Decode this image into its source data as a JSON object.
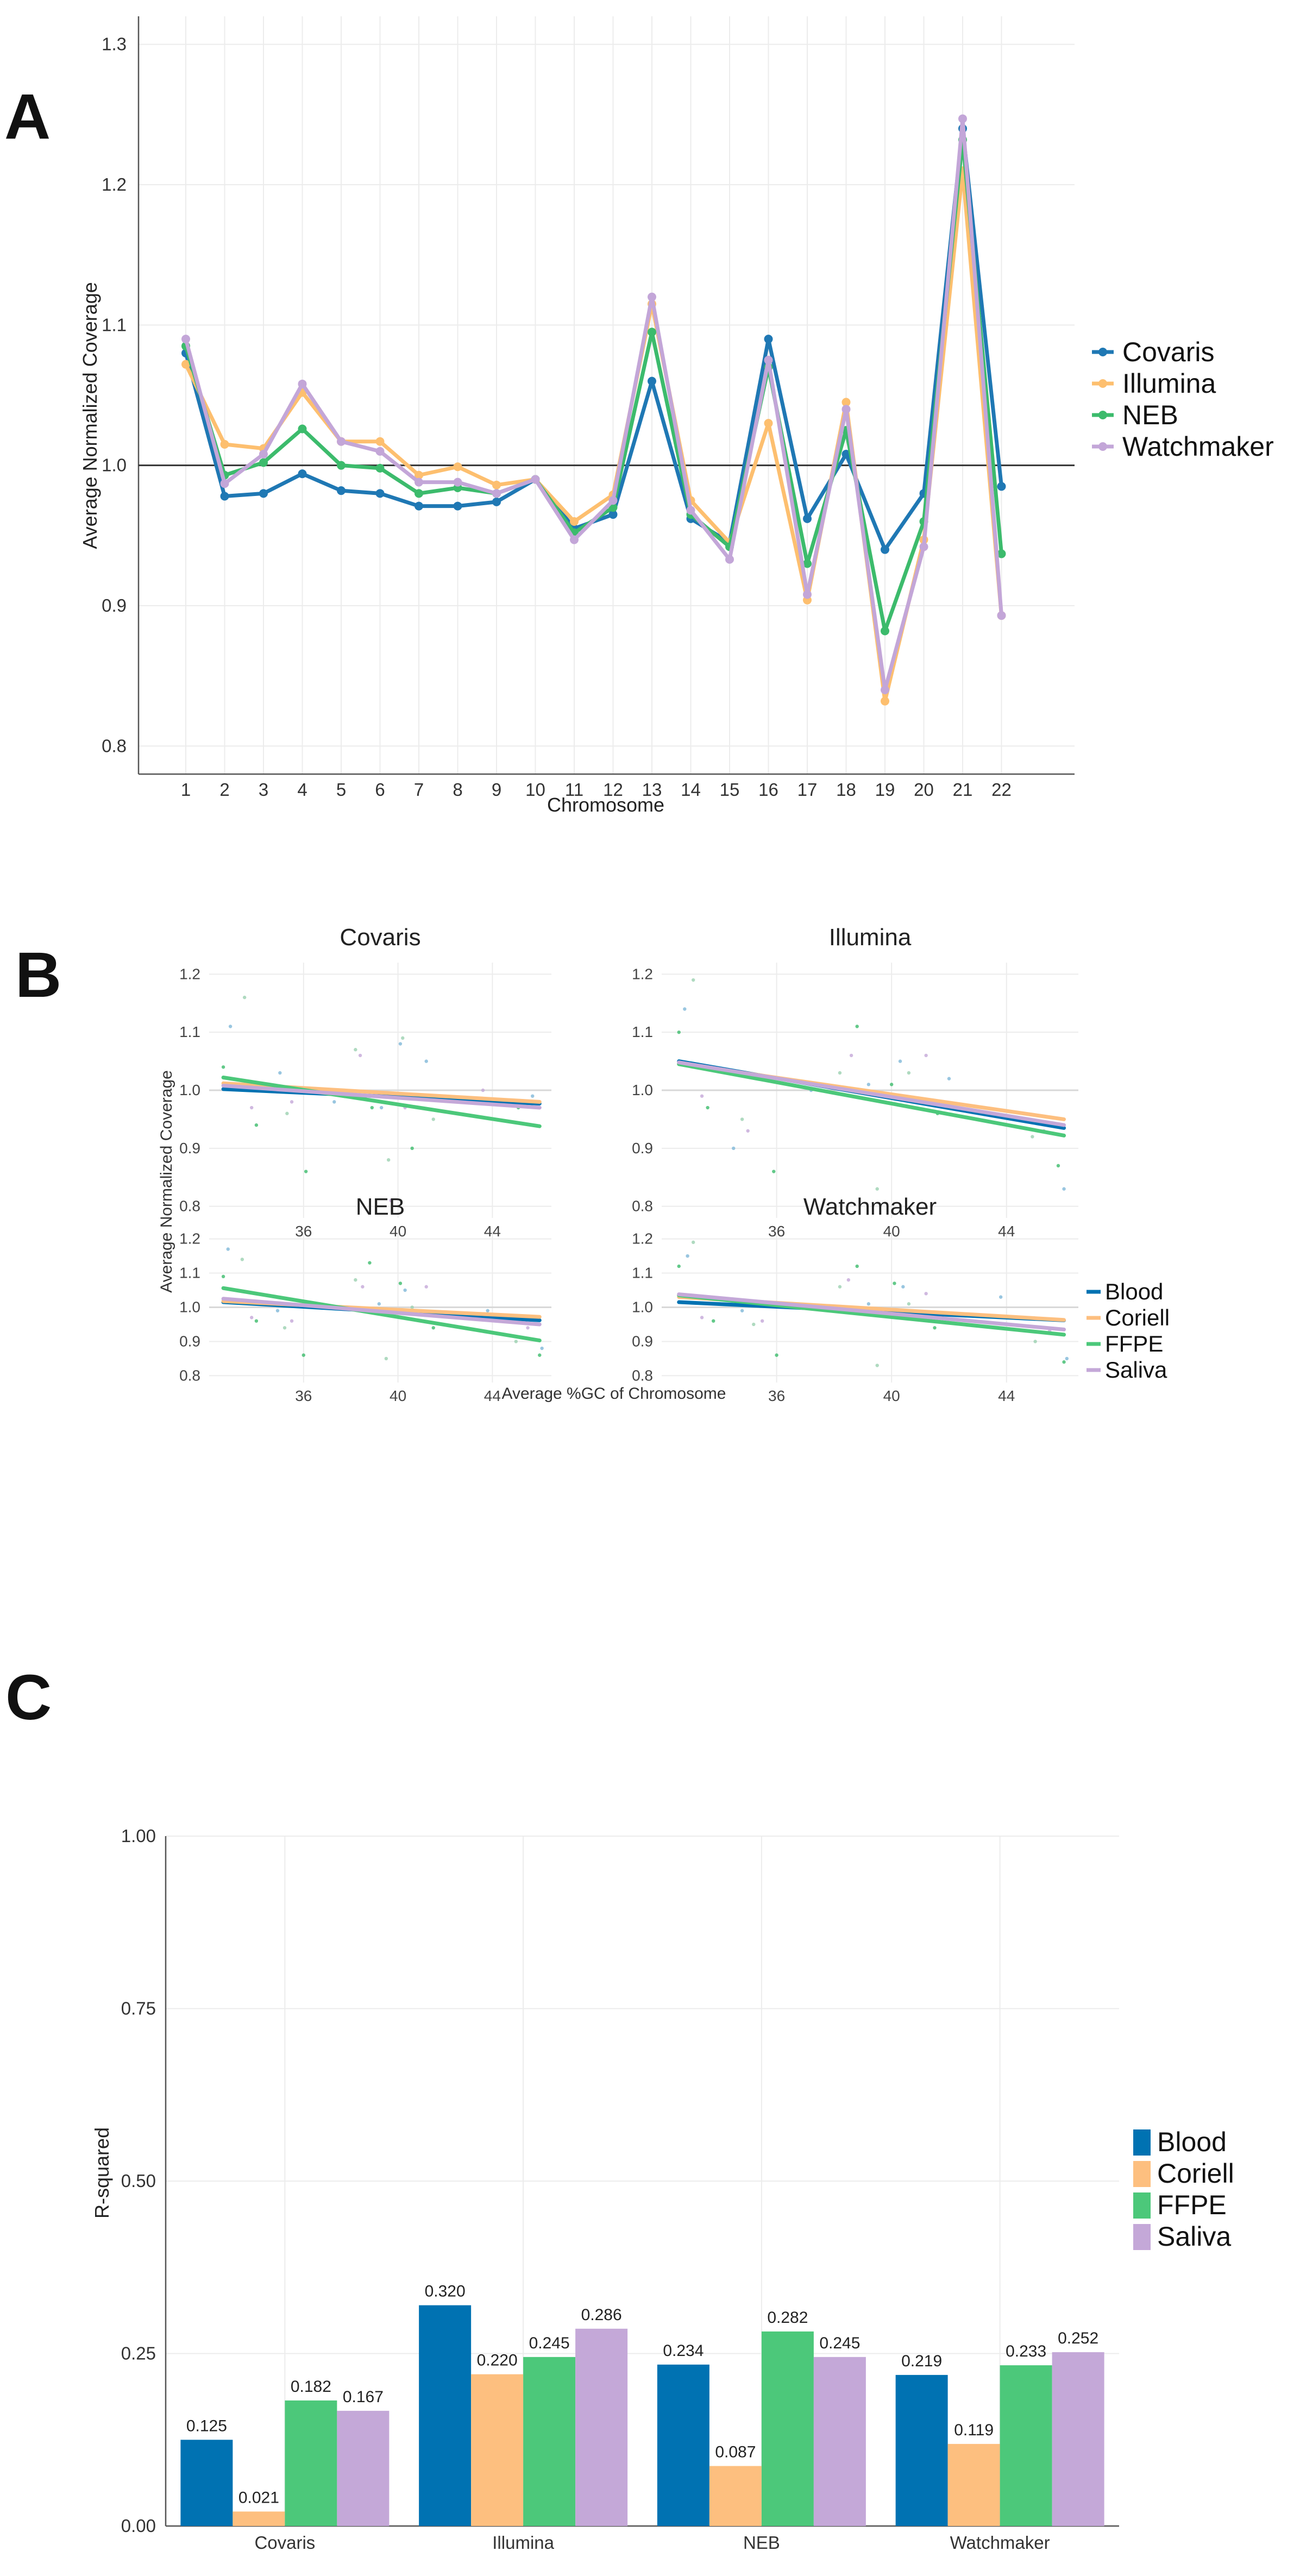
{
  "panel_labels": {
    "a": "A",
    "b": "B",
    "c": "C"
  },
  "colors": {
    "Covaris": "#1f78b4",
    "Illumina": "#fdbf6f",
    "NEB": "#3cbb6c",
    "Watchmaker": "#c3a6d8",
    "Blood": "#0072b2",
    "Coriell": "#fdbf7f",
    "FFPE": "#4cc87a",
    "Saliva": "#c4a8d8"
  },
  "chart_data": [
    {
      "id": "panel-a",
      "type": "line",
      "title": "",
      "xlabel": "Chromosome",
      "ylabel": "Average Normalized Coverage",
      "ylim": [
        0.78,
        1.32
      ],
      "yticks": [
        "0.8",
        "0.9",
        "1.0",
        "1.1",
        "1.2",
        "1.3"
      ],
      "categories": [
        "1",
        "2",
        "3",
        "4",
        "5",
        "6",
        "7",
        "8",
        "9",
        "10",
        "11",
        "12",
        "13",
        "14",
        "15",
        "16",
        "17",
        "18",
        "19",
        "20",
        "21",
        "22"
      ],
      "reference_line": 1.0,
      "series": [
        {
          "name": "Covaris",
          "values": [
            1.08,
            0.978,
            0.98,
            0.994,
            0.982,
            0.98,
            0.971,
            0.971,
            0.974,
            0.99,
            0.955,
            0.965,
            1.06,
            0.962,
            0.945,
            1.09,
            0.962,
            1.008,
            0.94,
            0.98,
            1.24,
            0.985
          ]
        },
        {
          "name": "Illumina",
          "values": [
            1.072,
            1.015,
            1.012,
            1.052,
            1.017,
            1.017,
            0.993,
            0.999,
            0.986,
            0.99,
            0.96,
            0.979,
            1.115,
            0.975,
            0.945,
            1.03,
            0.904,
            1.045,
            0.832,
            0.947,
            1.21,
            0.893
          ]
        },
        {
          "name": "NEB",
          "values": [
            1.085,
            0.993,
            1.002,
            1.026,
            1.0,
            0.998,
            0.98,
            0.984,
            0.98,
            0.99,
            0.952,
            0.97,
            1.095,
            0.965,
            0.942,
            1.07,
            0.93,
            1.025,
            0.882,
            0.96,
            1.232,
            0.937
          ]
        },
        {
          "name": "Watchmaker",
          "values": [
            1.09,
            0.987,
            1.008,
            1.058,
            1.017,
            1.01,
            0.988,
            0.988,
            0.98,
            0.99,
            0.947,
            0.975,
            1.12,
            0.968,
            0.933,
            1.075,
            0.908,
            1.04,
            0.84,
            0.942,
            1.247,
            0.893
          ]
        }
      ],
      "legend": "right"
    },
    {
      "id": "panel-b",
      "type": "scatter",
      "xlabel": "Average %GC of Chromosome",
      "ylabel": "Average Normalized Coverage",
      "xlim": [
        32.0,
        46.5
      ],
      "ylim": [
        0.78,
        1.22
      ],
      "xticks": [
        "36",
        "40",
        "44"
      ],
      "yticks": [
        "0.8",
        "0.9",
        "1.0",
        "1.1",
        "1.2"
      ],
      "legend": "right",
      "legend_series": [
        "Blood",
        "Coriell",
        "FFPE",
        "Saliva"
      ],
      "facets": [
        {
          "title": "Covaris",
          "fits": [
            {
              "name": "Blood",
              "x": [
                32.6,
                46.0
              ],
              "y": [
                1.002,
                0.977
              ]
            },
            {
              "name": "Coriell",
              "x": [
                32.6,
                46.0
              ],
              "y": [
                1.012,
                0.98
              ]
            },
            {
              "name": "FFPE",
              "x": [
                32.6,
                46.0
              ],
              "y": [
                1.022,
                0.938
              ]
            },
            {
              "name": "Saliva",
              "x": [
                32.6,
                46.0
              ],
              "y": [
                1.008,
                0.97
              ]
            }
          ],
          "points": [
            [
              32.6,
              1.04
            ],
            [
              32.9,
              1.11
            ],
            [
              33.5,
              1.16
            ],
            [
              33.8,
              0.97
            ],
            [
              34.0,
              0.94
            ],
            [
              35.0,
              1.03
            ],
            [
              35.3,
              0.96
            ],
            [
              35.5,
              0.98
            ],
            [
              36.1,
              0.86
            ],
            [
              37.3,
              0.98
            ],
            [
              38.2,
              1.07
            ],
            [
              38.4,
              1.06
            ],
            [
              38.9,
              0.97
            ],
            [
              39.3,
              0.97
            ],
            [
              39.6,
              0.88
            ],
            [
              39.7,
              0.81
            ],
            [
              39.9,
              0.99
            ],
            [
              40.1,
              1.08
            ],
            [
              40.2,
              1.09
            ],
            [
              40.3,
              0.97
            ],
            [
              40.6,
              0.9
            ],
            [
              41.2,
              1.05
            ],
            [
              41.5,
              0.95
            ],
            [
              43.6,
              1.0
            ],
            [
              45.1,
              0.97
            ],
            [
              45.7,
              0.99
            ]
          ]
        },
        {
          "title": "Illumina",
          "fits": [
            {
              "name": "Blood",
              "x": [
                32.6,
                46.0
              ],
              "y": [
                1.05,
                0.935
              ]
            },
            {
              "name": "Coriell",
              "x": [
                32.6,
                46.0
              ],
              "y": [
                1.046,
                0.95
              ]
            },
            {
              "name": "FFPE",
              "x": [
                32.6,
                46.0
              ],
              "y": [
                1.045,
                0.922
              ]
            },
            {
              "name": "Saliva",
              "x": [
                32.6,
                46.0
              ],
              "y": [
                1.048,
                0.94
              ]
            }
          ],
          "points": [
            [
              32.6,
              1.1
            ],
            [
              32.8,
              1.14
            ],
            [
              33.1,
              1.19
            ],
            [
              33.4,
              0.99
            ],
            [
              33.6,
              0.97
            ],
            [
              34.5,
              0.9
            ],
            [
              34.8,
              0.95
            ],
            [
              35.0,
              0.93
            ],
            [
              35.9,
              0.86
            ],
            [
              37.2,
              1.0
            ],
            [
              38.2,
              1.03
            ],
            [
              38.6,
              1.06
            ],
            [
              38.8,
              1.11
            ],
            [
              39.2,
              1.01
            ],
            [
              39.5,
              0.83
            ],
            [
              39.8,
              0.99
            ],
            [
              40.0,
              1.01
            ],
            [
              40.3,
              1.05
            ],
            [
              40.6,
              1.03
            ],
            [
              41.2,
              1.06
            ],
            [
              41.6,
              0.96
            ],
            [
              42.0,
              1.02
            ],
            [
              44.9,
              0.92
            ],
            [
              45.3,
              0.93
            ],
            [
              45.8,
              0.87
            ],
            [
              46.0,
              0.83
            ]
          ]
        },
        {
          "title": "NEB",
          "fits": [
            {
              "name": "Blood",
              "x": [
                32.6,
                46.0
              ],
              "y": [
                1.015,
                0.962
              ]
            },
            {
              "name": "Coriell",
              "x": [
                32.6,
                46.0
              ],
              "y": [
                1.018,
                0.972
              ]
            },
            {
              "name": "FFPE",
              "x": [
                32.6,
                46.0
              ],
              "y": [
                1.056,
                0.903
              ]
            },
            {
              "name": "Saliva",
              "x": [
                32.6,
                46.0
              ],
              "y": [
                1.025,
                0.95
              ]
            }
          ],
          "points": [
            [
              32.6,
              1.09
            ],
            [
              32.8,
              1.17
            ],
            [
              33.4,
              1.14
            ],
            [
              33.8,
              0.97
            ],
            [
              34.0,
              0.96
            ],
            [
              34.9,
              0.99
            ],
            [
              35.2,
              0.94
            ],
            [
              35.5,
              0.96
            ],
            [
              36.0,
              0.86
            ],
            [
              37.2,
              1.0
            ],
            [
              38.2,
              1.08
            ],
            [
              38.5,
              1.06
            ],
            [
              38.8,
              1.13
            ],
            [
              39.2,
              1.01
            ],
            [
              39.5,
              0.85
            ],
            [
              39.8,
              0.99
            ],
            [
              40.1,
              1.07
            ],
            [
              40.3,
              1.05
            ],
            [
              40.6,
              1.0
            ],
            [
              41.2,
              1.06
            ],
            [
              41.5,
              0.94
            ],
            [
              43.8,
              0.99
            ],
            [
              45.0,
              0.9
            ],
            [
              45.5,
              0.94
            ],
            [
              46.0,
              0.86
            ],
            [
              46.1,
              0.88
            ]
          ]
        },
        {
          "title": "Watchmaker",
          "fits": [
            {
              "name": "Blood",
              "x": [
                32.6,
                46.0
              ],
              "y": [
                1.015,
                0.962
              ]
            },
            {
              "name": "Coriell",
              "x": [
                32.6,
                46.0
              ],
              "y": [
                1.03,
                0.963
              ]
            },
            {
              "name": "FFPE",
              "x": [
                32.6,
                46.0
              ],
              "y": [
                1.035,
                0.92
              ]
            },
            {
              "name": "Saliva",
              "x": [
                32.6,
                46.0
              ],
              "y": [
                1.038,
                0.935
              ]
            }
          ],
          "points": [
            [
              32.6,
              1.12
            ],
            [
              32.9,
              1.15
            ],
            [
              33.1,
              1.19
            ],
            [
              33.4,
              0.97
            ],
            [
              33.8,
              0.96
            ],
            [
              34.8,
              0.99
            ],
            [
              35.2,
              0.95
            ],
            [
              35.5,
              0.96
            ],
            [
              36.0,
              0.86
            ],
            [
              37.2,
              1.0
            ],
            [
              38.2,
              1.06
            ],
            [
              38.5,
              1.08
            ],
            [
              38.8,
              1.12
            ],
            [
              39.2,
              1.01
            ],
            [
              39.5,
              0.83
            ],
            [
              39.8,
              0.99
            ],
            [
              40.1,
              1.07
            ],
            [
              40.4,
              1.06
            ],
            [
              40.6,
              1.01
            ],
            [
              41.2,
              1.04
            ],
            [
              41.5,
              0.94
            ],
            [
              43.8,
              1.03
            ],
            [
              45.0,
              0.9
            ],
            [
              45.5,
              0.93
            ],
            [
              46.0,
              0.84
            ],
            [
              46.1,
              0.85
            ]
          ]
        }
      ]
    },
    {
      "id": "panel-c",
      "type": "bar",
      "xlabel": "",
      "ylabel": "R-squared",
      "ylim": [
        0,
        1.0
      ],
      "yticks": [
        "0.00",
        "0.25",
        "0.50",
        "0.75",
        "1.00"
      ],
      "categories": [
        "Covaris",
        "Illumina",
        "NEB",
        "Watchmaker"
      ],
      "series": [
        {
          "name": "Blood",
          "values": [
            0.125,
            0.32,
            0.234,
            0.219
          ],
          "labels": [
            "0.125",
            "0.320",
            "0.234",
            "0.219"
          ]
        },
        {
          "name": "Coriell",
          "values": [
            0.021,
            0.22,
            0.087,
            0.119
          ],
          "labels": [
            "0.021",
            "0.220",
            "0.087",
            "0.119"
          ]
        },
        {
          "name": "FFPE",
          "values": [
            0.182,
            0.245,
            0.282,
            0.233
          ],
          "labels": [
            "0.182",
            "0.245",
            "0.282",
            "0.233"
          ]
        },
        {
          "name": "Saliva",
          "values": [
            0.167,
            0.286,
            0.245,
            0.252
          ],
          "labels": [
            "0.167",
            "0.286",
            "0.245",
            "0.252"
          ]
        }
      ],
      "legend": "right"
    }
  ]
}
